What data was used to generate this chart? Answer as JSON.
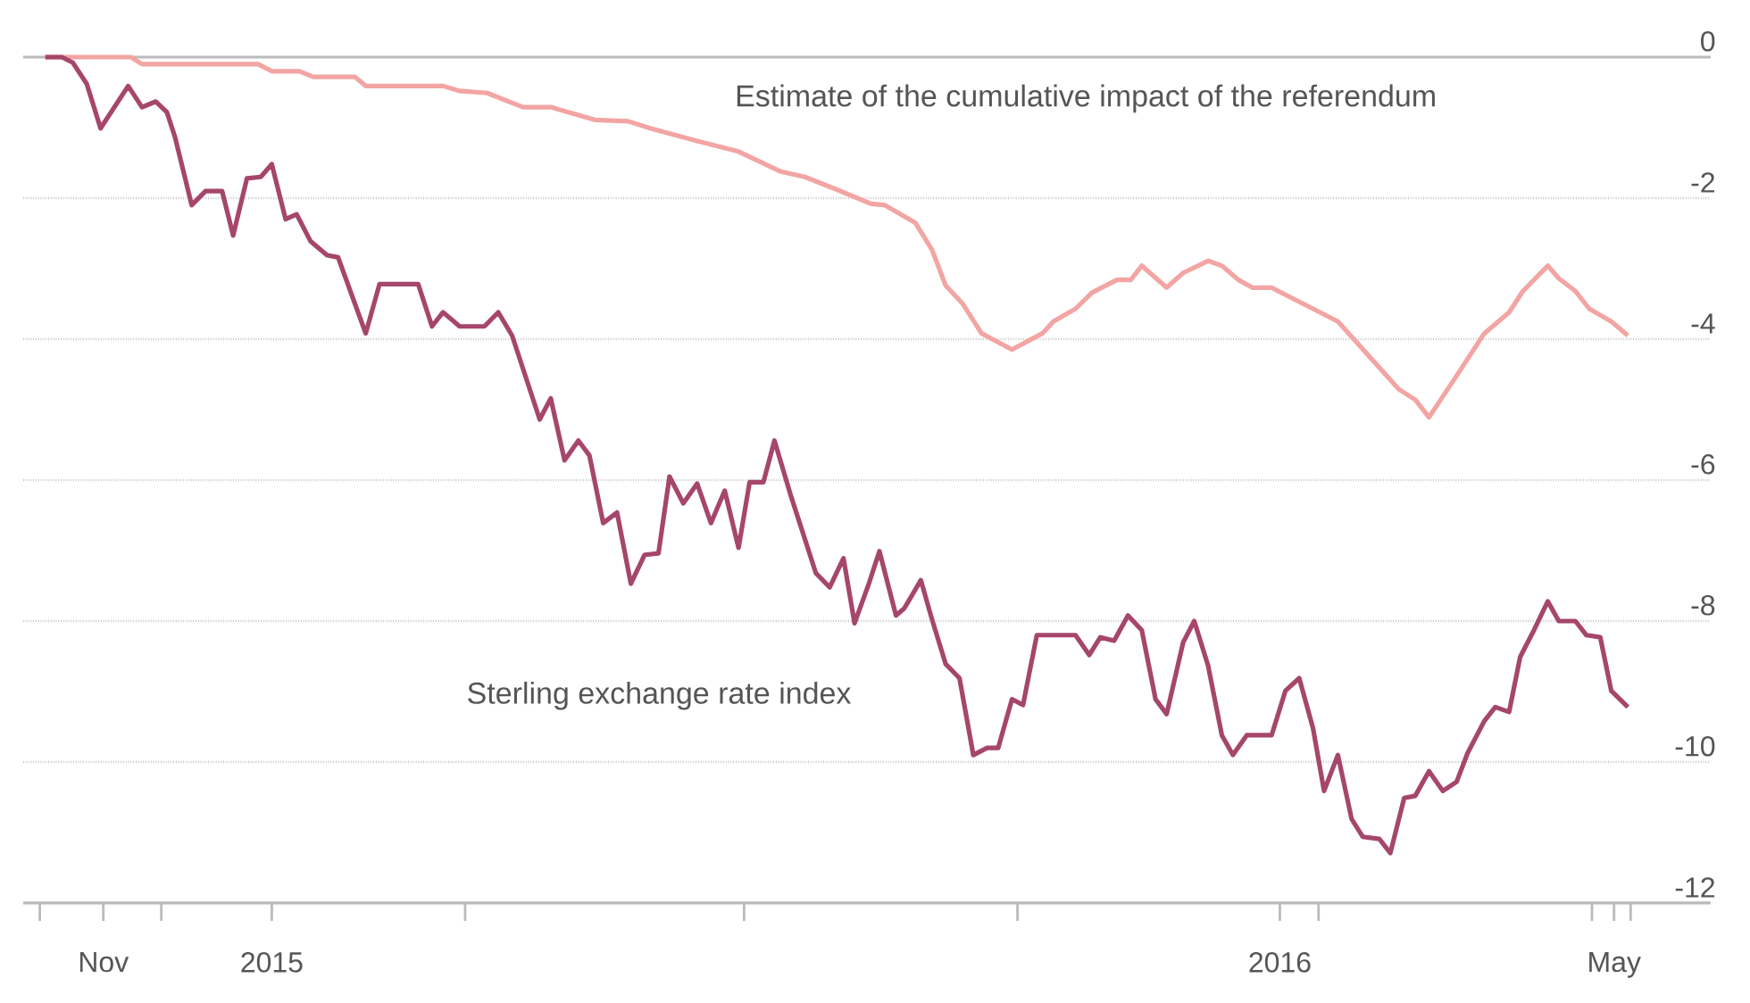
{
  "chart_data": {
    "type": "line",
    "xlim": [
      "2014-10-03",
      "2016-06-05"
    ],
    "xticks": [
      {
        "value": "2014-10-09",
        "label": null
      },
      {
        "value": "2014-11-01",
        "label": "Nov"
      },
      {
        "value": "2014-11-22",
        "label": null
      },
      {
        "value": "2015-01-01",
        "label": "2015"
      },
      {
        "value": "2015-03-12",
        "label": null
      },
      {
        "value": "2015-06-21",
        "label": null
      },
      {
        "value": "2015-09-28",
        "label": null
      },
      {
        "value": "2016-01-01",
        "label": "2016"
      },
      {
        "value": "2016-01-15",
        "label": null
      },
      {
        "value": "2016-04-23",
        "label": null
      },
      {
        "value": "2016-05-01",
        "label": "May"
      },
      {
        "value": "2016-05-07",
        "label": null
      }
    ],
    "ylim": [
      -12,
      0
    ],
    "yticks": [
      0,
      -2,
      -4,
      -6,
      -8,
      -10,
      -12
    ],
    "grid": "y",
    "legend": false,
    "marker": "none",
    "line_style": "solid",
    "ref_lines": [
      {
        "axis": "y",
        "value": 0,
        "color": "#bbbbbb"
      }
    ],
    "series": [
      {
        "name": "Estimate of the cumulative impact of the referendum",
        "color": "#f2a5a3",
        "x": [
          "2014-10-11",
          "2014-11-11",
          "2014-11-15",
          "2014-12-27",
          "2015-01-01",
          "2015-01-11",
          "2015-01-16",
          "2015-01-31",
          "2015-02-04",
          "2015-03-04",
          "2015-03-10",
          "2015-03-20",
          "2015-04-02",
          "2015-04-12",
          "2015-04-18",
          "2015-04-28",
          "2015-05-10",
          "2015-05-18",
          "2015-06-04",
          "2015-06-19",
          "2015-07-04",
          "2015-07-13",
          "2015-07-24",
          "2015-08-06",
          "2015-08-11",
          "2015-08-22",
          "2015-08-28",
          "2015-09-02",
          "2015-09-08",
          "2015-09-15",
          "2015-09-26",
          "2015-10-07",
          "2015-10-11",
          "2015-10-19",
          "2015-10-25",
          "2015-11-03",
          "2015-11-08",
          "2015-11-12",
          "2015-11-21",
          "2015-11-27",
          "2015-12-06",
          "2015-12-11",
          "2015-12-17",
          "2015-12-22",
          "2015-12-29",
          "2016-01-03",
          "2016-01-22",
          "2016-02-13",
          "2016-02-19",
          "2016-02-24",
          "2016-03-06",
          "2016-03-15",
          "2016-03-24",
          "2016-03-29",
          "2016-04-07",
          "2016-04-11",
          "2016-04-17",
          "2016-04-22",
          "2016-04-30",
          "2016-05-06"
        ],
        "values": [
          0,
          0,
          -0.1,
          -0.1,
          -0.2,
          -0.2,
          -0.28,
          -0.28,
          -0.41,
          -0.41,
          -0.48,
          -0.51,
          -0.71,
          -0.71,
          -0.78,
          -0.89,
          -0.91,
          -1.01,
          -1.19,
          -1.34,
          -1.62,
          -1.7,
          -1.87,
          -2.08,
          -2.1,
          -2.35,
          -2.73,
          -3.24,
          -3.49,
          -3.92,
          -4.15,
          -3.92,
          -3.75,
          -3.57,
          -3.34,
          -3.16,
          -3.16,
          -2.96,
          -3.27,
          -3.06,
          -2.89,
          -2.96,
          -3.16,
          -3.27,
          -3.27,
          -3.37,
          -3.75,
          -4.71,
          -4.86,
          -5.11,
          -4.46,
          -3.92,
          -3.62,
          -3.32,
          -2.96,
          -3.14,
          -3.32,
          -3.57,
          -3.75,
          -3.95
        ]
      },
      {
        "name": "Sterling exchange rate index",
        "color": "#a6466a",
        "x": [
          "2014-10-11",
          "2014-10-17",
          "2014-10-21",
          "2014-10-26",
          "2014-10-31",
          "2014-11-10",
          "2014-11-15",
          "2014-11-20",
          "2014-11-24",
          "2014-11-27",
          "2014-12-03",
          "2014-12-08",
          "2014-12-14",
          "2014-12-18",
          "2014-12-23",
          "2014-12-28",
          "2015-01-01",
          "2015-01-06",
          "2015-01-10",
          "2015-01-15",
          "2015-01-21",
          "2015-01-25",
          "2015-02-04",
          "2015-02-09",
          "2015-02-23",
          "2015-02-28",
          "2015-03-04",
          "2015-03-10",
          "2015-03-19",
          "2015-03-24",
          "2015-03-29",
          "2015-04-08",
          "2015-04-12",
          "2015-04-17",
          "2015-04-22",
          "2015-04-26",
          "2015-05-01",
          "2015-05-06",
          "2015-05-11",
          "2015-05-16",
          "2015-05-21",
          "2015-05-25",
          "2015-05-30",
          "2015-06-04",
          "2015-06-09",
          "2015-06-14",
          "2015-06-19",
          "2015-06-23",
          "2015-06-28",
          "2015-07-02",
          "2015-07-08",
          "2015-07-17",
          "2015-07-22",
          "2015-07-27",
          "2015-07-31",
          "2015-08-05",
          "2015-08-09",
          "2015-08-15",
          "2015-08-18",
          "2015-08-24",
          "2015-08-28",
          "2015-09-02",
          "2015-09-07",
          "2015-09-12",
          "2015-09-17",
          "2015-09-21",
          "2015-09-26",
          "2015-09-30",
          "2015-10-05",
          "2015-10-19",
          "2015-10-24",
          "2015-10-28",
          "2015-11-02",
          "2015-11-07",
          "2015-11-12",
          "2015-11-17",
          "2015-11-21",
          "2015-11-27",
          "2015-12-01",
          "2015-12-06",
          "2015-12-11",
          "2015-12-15",
          "2015-12-20",
          "2015-12-29",
          "2016-01-03",
          "2016-01-08",
          "2016-01-13",
          "2016-01-17",
          "2016-01-22",
          "2016-01-27",
          "2016-01-31",
          "2016-02-06",
          "2016-02-10",
          "2016-02-15",
          "2016-02-19",
          "2016-02-24",
          "2016-02-29",
          "2016-03-05",
          "2016-03-09",
          "2016-03-15",
          "2016-03-19",
          "2016-03-24",
          "2016-03-28",
          "2016-04-02",
          "2016-04-07",
          "2016-04-11",
          "2016-04-17",
          "2016-04-21",
          "2016-04-26",
          "2016-04-30",
          "2016-05-06"
        ],
        "values": [
          0,
          0,
          -0.08,
          -0.38,
          -1.01,
          -0.41,
          -0.71,
          -0.63,
          -0.78,
          -1.14,
          -2.1,
          -1.9,
          -1.9,
          -2.53,
          -1.72,
          -1.7,
          -1.52,
          -2.3,
          -2.23,
          -2.61,
          -2.81,
          -2.84,
          -3.92,
          -3.22,
          -3.22,
          -3.82,
          -3.62,
          -3.82,
          -3.82,
          -3.62,
          -3.95,
          -5.14,
          -4.84,
          -5.72,
          -5.44,
          -5.65,
          -6.61,
          -6.46,
          -7.47,
          -7.06,
          -7.04,
          -5.95,
          -6.33,
          -6.05,
          -6.61,
          -6.15,
          -6.96,
          -6.03,
          -6.03,
          -5.44,
          -6.23,
          -7.32,
          -7.52,
          -7.11,
          -8.03,
          -7.49,
          -7.01,
          -7.92,
          -7.82,
          -7.42,
          -7.97,
          -8.61,
          -8.81,
          -9.9,
          -9.8,
          -9.8,
          -9.11,
          -9.19,
          -8.2,
          -8.2,
          -8.48,
          -8.23,
          -8.28,
          -7.92,
          -8.13,
          -9.11,
          -9.32,
          -8.3,
          -8.0,
          -8.63,
          -9.62,
          -9.9,
          -9.62,
          -9.62,
          -8.99,
          -8.81,
          -9.52,
          -10.41,
          -9.9,
          -10.81,
          -11.06,
          -11.09,
          -11.29,
          -10.51,
          -10.48,
          -10.13,
          -10.41,
          -10.28,
          -9.87,
          -9.42,
          -9.22,
          -9.29,
          -8.51,
          -8.13,
          -7.72,
          -8.0,
          -8.0,
          -8.2,
          -8.23,
          -8.99,
          -9.22
        ]
      }
    ]
  }
}
